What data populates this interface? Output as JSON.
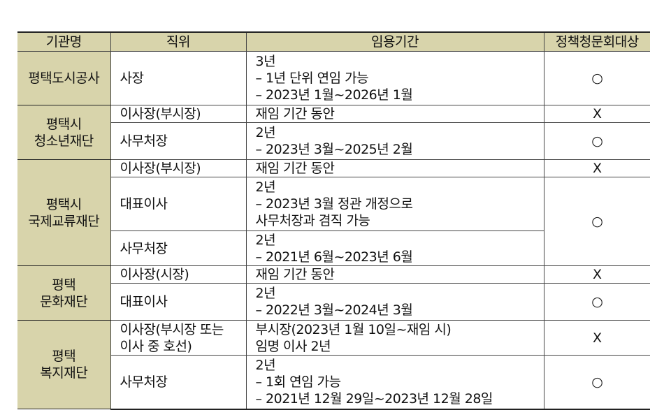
{
  "header": {
    "columns": [
      "기관명",
      "직위",
      "임용기간",
      "정책청문회대상"
    ]
  },
  "orgs": [
    {
      "name": [
        "평택도시공사"
      ],
      "positions": [
        {
          "title": [
            "사장"
          ],
          "period": [
            "3년",
            "– 1년 단위 연임 가능",
            "– 2023년 1월~2026년 1월"
          ],
          "target": "○"
        }
      ]
    },
    {
      "name": [
        "평택시",
        "청소년재단"
      ],
      "positions": [
        {
          "title": [
            "이사장(부시장)"
          ],
          "period": [
            "재임 기간 동안"
          ],
          "target": "X"
        },
        {
          "title": [
            "사무처장"
          ],
          "period": [
            "2년",
            "– 2023년 3월~2025년 2월"
          ],
          "target": "○"
        }
      ]
    },
    {
      "name": [
        "평택시",
        "국제교류재단"
      ],
      "positions": [
        {
          "title": [
            "이사장(부시장)"
          ],
          "period": [
            "재임 기간 동안"
          ],
          "target": "X"
        },
        {
          "title": [
            "대표이사"
          ],
          "period": [
            "2년",
            "– 2023년 3월 정관 개정으로",
            "사무처장과 겸직 가능"
          ],
          "target": "○"
        },
        {
          "title": [
            "사무처장"
          ],
          "period": [
            "2년",
            "– 2021년 6월~2023년 6월"
          ],
          "target": null
        }
      ]
    },
    {
      "name": [
        "평택",
        "문화재단"
      ],
      "positions": [
        {
          "title": [
            "이사장(시장)"
          ],
          "period": [
            "재임 기간 동안"
          ],
          "target": "X"
        },
        {
          "title": [
            "대표이사"
          ],
          "period": [
            "2년",
            "– 2022년 3월~2024년 3월"
          ],
          "target": "○"
        }
      ]
    },
    {
      "name": [
        "평택",
        "복지재단"
      ],
      "positions": [
        {
          "title": [
            "이사장(부시장 또는",
            "이사 중 호선)"
          ],
          "period": [
            "부시장(2023년 1월 10일~재임 시)",
            "임명 이사 2년"
          ],
          "target": "X"
        },
        {
          "title": [
            "사무처장"
          ],
          "period": [
            "2년",
            "– 1회 연임 가능",
            "– 2021년 12월 29일~2023년 12월 28일"
          ],
          "target": "○"
        }
      ]
    }
  ],
  "colors": {
    "header_bg": "#d8d4ab",
    "border": "#444444"
  }
}
